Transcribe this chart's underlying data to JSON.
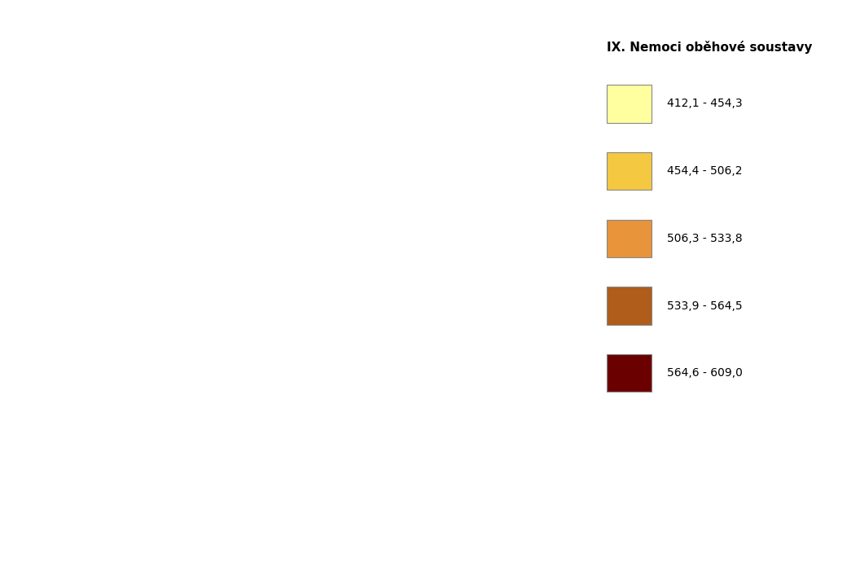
{
  "title": "IX. Nemoci oběhové soustavy",
  "legend_labels": [
    "412,1 - 454,3",
    "454,4 - 506,2",
    "506,3 - 533,8",
    "533,9 - 564,5",
    "564,6 - 609,0"
  ],
  "legend_colors": [
    "#FFFFA0",
    "#F5C842",
    "#E8943A",
    "#B05C1A",
    "#6B0000"
  ],
  "background_color": "#FFFFFF",
  "border_color": "#888888",
  "outer_border_color": "#555555",
  "border_linewidth": 0.5,
  "outer_linewidth": 1.0,
  "figsize": [
    10.56,
    6.89
  ],
  "dpi": 100,
  "map_extent": [
    12.0,
    18.9,
    48.45,
    51.15
  ],
  "district_colors": {
    "Praha": 5,
    "Benesov": 2,
    "Beroun": 1,
    "Kladno": 3,
    "Kolin": 2,
    "Kutna Hora": 1,
    "Melnik": 2,
    "Mlada Boleslav": 2,
    "Nymburk": 2,
    "Praha-vychod": 2,
    "Praha-zapad": 1,
    "Pribram": 2,
    "Rakovnik": 1,
    "Ceske Budejovice": 1,
    "Cesky Krumlov": 1,
    "Jindrichuv Hradec": 2,
    "Pisek": 1,
    "Prachatice": 1,
    "Strakonice": 2,
    "Tabor": 2,
    "Cheb": 1,
    "Karlovy Vary": 1,
    "Sokolov": 2,
    "Decin": 5,
    "Chomutov": 4,
    "Litomerice": 5,
    "Louny": 3,
    "Most": 3,
    "Teplice": 5,
    "Usti nad Labem": 4,
    "Ceska Lipa": 2,
    "Jablonec nad Nisou": 2,
    "Liberec": 3,
    "Semily": 3,
    "Hradec Kralove": 5,
    "Jicin": 3,
    "Nachod": 3,
    "Rychnov nad Kneznou": 3,
    "Trutnov": 2,
    "Chrudim": 3,
    "Pardubice": 3,
    "Svitavy": 5,
    "Usti nad Orlici": 2,
    "Havlickuv Brod": 4,
    "Jihlava": 3,
    "Pelhrimov": 2,
    "Trebic": 3,
    "Zdar nad Sazavou": 2,
    "Blansko": 2,
    "Brno-mesto": 3,
    "Brno-venkov": 5,
    "Breclav": 2,
    "Hodonin": 3,
    "Vyskov": 4,
    "Znojmo": 2,
    "Jesenik": 3,
    "Olomouc": 3,
    "Prostejov": 4,
    "Prerov": 3,
    "Sumperk": 3,
    "Kromeriz": 5,
    "Uherske Hradiste": 3,
    "Vsetin": 4,
    "Zlin": 5,
    "Bruntal": 4,
    "Frydek-Mistek": 4,
    "Karvina": 5,
    "Novy Jicin": 4,
    "Opava": 3,
    "Ostrava-mesto": 5
  },
  "title_fontsize": 11,
  "legend_fontsize": 10
}
